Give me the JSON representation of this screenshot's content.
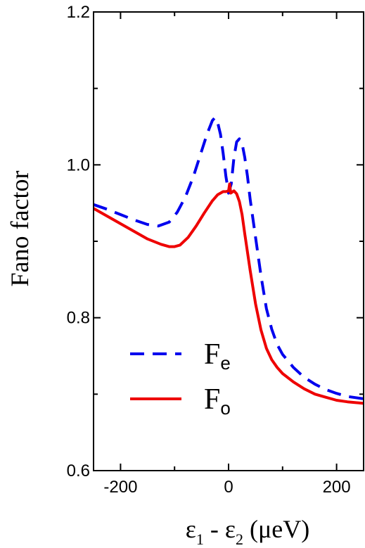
{
  "chart_data": {
    "type": "line",
    "title": "",
    "xlabel": {
      "text_pre": "ε",
      "sub1": "1",
      "text_mid": " - ε",
      "sub2": "2",
      "text_post": " (μeV)"
    },
    "ylabel": "Fano factor",
    "xlim": [
      -250,
      250
    ],
    "ylim": [
      0.6,
      1.2
    ],
    "xticks": [
      -200,
      0,
      200
    ],
    "xtick_labels": [
      "-200",
      "0",
      "200"
    ],
    "yticks": [
      0.6,
      0.8,
      1.0,
      1.2
    ],
    "ytick_labels": [
      "0.6",
      "0.8",
      "1.0",
      "1.2"
    ],
    "grid": false,
    "legend_position": "bottom-center",
    "series": [
      {
        "name": "F",
        "name_sub": "e",
        "color": "#0000ee",
        "style": "dashed",
        "x": [
          -250,
          -225,
          -200,
          -175,
          -150,
          -130,
          -110,
          -95,
          -80,
          -65,
          -50,
          -40,
          -30,
          -25,
          -20,
          -15,
          -10,
          -5,
          0,
          5,
          10,
          15,
          20,
          25,
          30,
          35,
          40,
          50,
          60,
          70,
          80,
          90,
          100,
          120,
          140,
          160,
          180,
          200,
          220,
          250
        ],
        "y": [
          0.948,
          0.942,
          0.935,
          0.928,
          0.922,
          0.92,
          0.925,
          0.938,
          0.958,
          0.985,
          1.018,
          1.04,
          1.058,
          1.062,
          1.055,
          1.04,
          1.015,
          0.985,
          0.963,
          0.975,
          1.01,
          1.03,
          1.034,
          1.028,
          1.01,
          0.985,
          0.955,
          0.905,
          0.855,
          0.812,
          0.785,
          0.765,
          0.752,
          0.735,
          0.722,
          0.713,
          0.706,
          0.701,
          0.697,
          0.694
        ]
      },
      {
        "name": "F",
        "name_sub": "o",
        "color": "#ee0000",
        "style": "solid",
        "x": [
          -250,
          -225,
          -200,
          -175,
          -150,
          -125,
          -110,
          -100,
          -90,
          -75,
          -60,
          -45,
          -30,
          -20,
          -10,
          -5,
          0,
          2,
          4,
          10,
          15,
          20,
          25,
          30,
          40,
          50,
          60,
          70,
          80,
          90,
          100,
          120,
          140,
          160,
          180,
          200,
          220,
          250
        ],
        "y": [
          0.943,
          0.933,
          0.923,
          0.913,
          0.903,
          0.896,
          0.893,
          0.893,
          0.895,
          0.905,
          0.92,
          0.937,
          0.953,
          0.961,
          0.965,
          0.965,
          0.966,
          0.975,
          0.963,
          0.966,
          0.962,
          0.952,
          0.935,
          0.91,
          0.862,
          0.818,
          0.784,
          0.76,
          0.745,
          0.735,
          0.727,
          0.716,
          0.707,
          0.7,
          0.696,
          0.692,
          0.69,
          0.688
        ]
      }
    ]
  }
}
